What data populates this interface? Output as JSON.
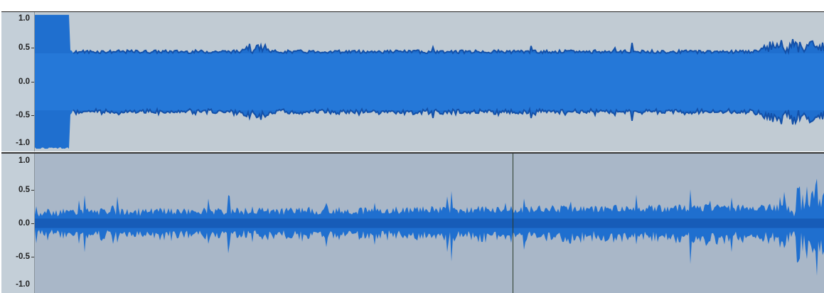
{
  "tracks": [
    {
      "id": "track-1",
      "axis_labels": [
        "1.0",
        "0.5",
        "0.0",
        "-0.5",
        "-1.0"
      ],
      "axis_values": [
        1.0,
        0.5,
        0.0,
        -0.5,
        -1.0
      ],
      "envelope_level": 0.45,
      "clipped_intro": true
    },
    {
      "id": "track-2",
      "axis_labels": [
        "1.0",
        "0.5",
        "0.0",
        "-0.5",
        "-1.0"
      ],
      "axis_values": [
        1.0,
        0.5,
        0.0,
        -0.5,
        -1.0
      ],
      "envelope_level": 0.2,
      "play_cursor_fraction": 0.605
    }
  ],
  "colors": {
    "waveform": "#1f6fcf",
    "waveform_dark": "#1350a8",
    "track1_bg": "#c1cbd3",
    "track2_bg": "#a9b7c8",
    "ruler_bg": "#c4cfd8"
  }
}
